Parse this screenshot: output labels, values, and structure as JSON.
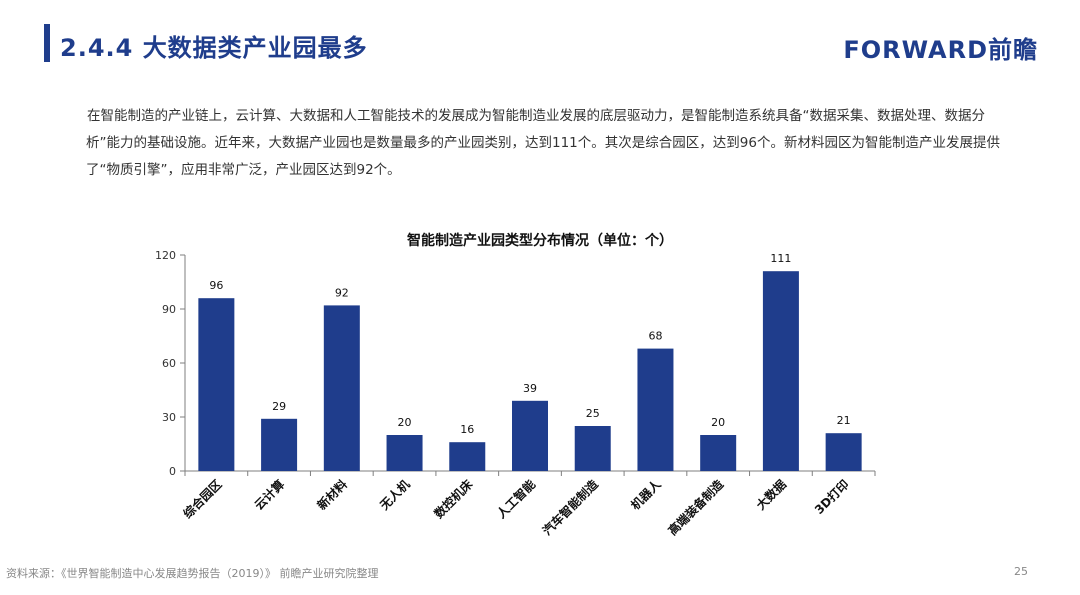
{
  "header": {
    "title": "2.4.4  大数据类产业园最多",
    "logo": "FORWARD前瞻"
  },
  "intro": "在智能制造的产业链上，云计算、大数据和人工智能技术的发展成为智能制造业发展的底层驱动力，是智能制造系统具备“数据采集、数据处理、数据分析”能力的基础设施。近年来，大数据产业园也是数量最多的产业园类别，达到111个。其次是综合园区，达到96个。新材料园区为智能制造产业发展提供了“物质引擎”，应用非常广泛，产业园区达到92个。",
  "footer": {
    "source": "资料来源：《世界智能制造中心发展趋势报告（2019）》 前瞻产业研究院整理",
    "page": "25"
  },
  "colors": {
    "brand": "#1f3d8c",
    "bar": "#1f3d8c"
  },
  "chart_data": {
    "type": "bar",
    "title": "智能制造产业园类型分布情况（单位：个）",
    "categories": [
      "综合园区",
      "云计算",
      "新材料",
      "无人机",
      "数控机床",
      "人工智能",
      "汽车智能制造",
      "机器人",
      "高端装备制造",
      "大数据",
      "3D打印"
    ],
    "values": [
      96,
      29,
      92,
      20,
      16,
      39,
      25,
      68,
      20,
      111,
      21
    ],
    "ylim": [
      0,
      120
    ],
    "yticks": [
      0,
      30,
      60,
      90,
      120
    ],
    "xlabel": "",
    "ylabel": "",
    "grid": false,
    "legend": false
  }
}
